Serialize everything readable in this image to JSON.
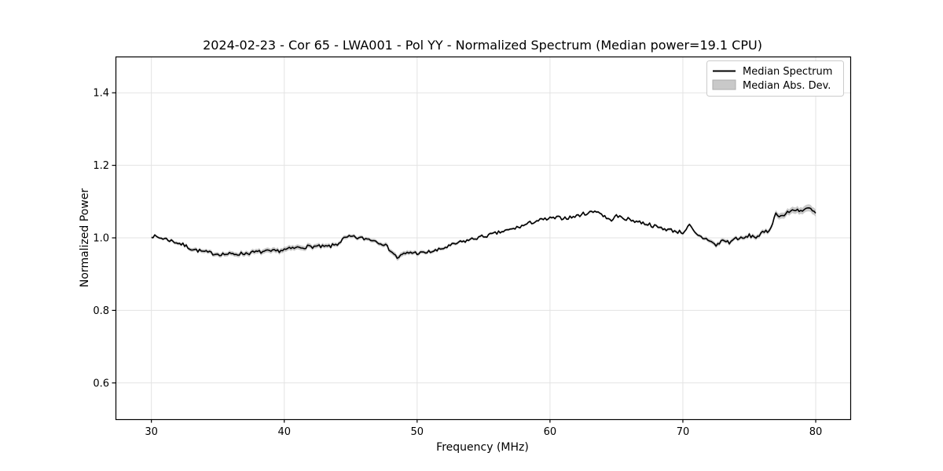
{
  "chart_data": {
    "type": "line",
    "title": "2024-02-23 - Cor 65 - LWA001 - Pol YY - Normalized Spectrum (Median power=19.1 CPU)",
    "xlabel": "Frequency (MHz)",
    "ylabel": "Normalized Power",
    "xlim": [
      27.3,
      82.6
    ],
    "ylim": [
      0.5,
      1.5
    ],
    "xticks": [
      30,
      40,
      50,
      60,
      70,
      80
    ],
    "yticks": [
      0.6,
      0.8,
      1.0,
      1.2,
      1.4
    ],
    "grid": true,
    "legend": {
      "position": "upper right",
      "entries": [
        {
          "label": "Median Spectrum",
          "type": "line",
          "color": "#000000"
        },
        {
          "label": "Median Abs. Dev.",
          "type": "patch",
          "color": "#c9c9c9"
        }
      ]
    },
    "noise_amplitude": 0.005,
    "series": [
      {
        "name": "Median Spectrum",
        "x": [
          30,
          30.5,
          31,
          31.5,
          32,
          32.5,
          33,
          33.5,
          34,
          34.5,
          35,
          35.5,
          36,
          36.5,
          37,
          37.5,
          38,
          38.5,
          39,
          39.5,
          40,
          40.5,
          41,
          41.5,
          42,
          42.5,
          43,
          43.5,
          44,
          44.5,
          45,
          45.5,
          46,
          46.5,
          47,
          47.5,
          48,
          48.5,
          49,
          49.5,
          50,
          50.5,
          51,
          51.5,
          52,
          52.5,
          53,
          53.5,
          54,
          54.5,
          55,
          55.5,
          56,
          56.5,
          57,
          57.5,
          58,
          58.5,
          59,
          59.5,
          60,
          60.5,
          61,
          61.5,
          62,
          62.5,
          63,
          63.5,
          64,
          64.5,
          65,
          65.5,
          66,
          66.5,
          67,
          67.5,
          68,
          68.5,
          69,
          69.5,
          70,
          70.5,
          71,
          71.5,
          72,
          72.5,
          73,
          73.5,
          74,
          74.5,
          75,
          75.5,
          76,
          76.5,
          77,
          77.5,
          78,
          78.5,
          79,
          79.5,
          80
        ],
        "y": [
          1.006,
          1.001,
          0.998,
          0.992,
          0.986,
          0.979,
          0.97,
          0.965,
          0.961,
          0.958,
          0.956,
          0.955,
          0.955,
          0.956,
          0.957,
          0.959,
          0.961,
          0.962,
          0.962,
          0.964,
          0.967,
          0.97,
          0.973,
          0.975,
          0.976,
          0.976,
          0.975,
          0.977,
          0.983,
          0.998,
          1.003,
          1.0,
          0.998,
          0.996,
          0.99,
          0.983,
          0.966,
          0.945,
          0.955,
          0.96,
          0.958,
          0.958,
          0.962,
          0.965,
          0.972,
          0.978,
          0.985,
          0.99,
          0.995,
          1.0,
          1.004,
          1.008,
          1.013,
          1.018,
          1.022,
          1.028,
          1.034,
          1.041,
          1.047,
          1.05,
          1.053,
          1.055,
          1.055,
          1.056,
          1.06,
          1.066,
          1.07,
          1.075,
          1.062,
          1.048,
          1.06,
          1.055,
          1.05,
          1.046,
          1.041,
          1.037,
          1.03,
          1.026,
          1.022,
          1.018,
          1.015,
          1.034,
          1.008,
          1.0,
          0.994,
          0.978,
          0.994,
          0.987,
          1.0,
          0.997,
          1.006,
          1.002,
          1.013,
          1.02,
          1.066,
          1.06,
          1.072,
          1.079,
          1.074,
          1.082,
          1.067
        ]
      },
      {
        "name": "Median Abs. Dev.",
        "halfwidth_points": [
          [
            30,
            0.003
          ],
          [
            33,
            0.005
          ],
          [
            36,
            0.006
          ],
          [
            40,
            0.007
          ],
          [
            43,
            0.006
          ],
          [
            45,
            0.005
          ],
          [
            47,
            0.005
          ],
          [
            48.5,
            0.007
          ],
          [
            50,
            0.005
          ],
          [
            53,
            0.004
          ],
          [
            56,
            0.003
          ],
          [
            60,
            0.003
          ],
          [
            65,
            0.003
          ],
          [
            69,
            0.004
          ],
          [
            71,
            0.004
          ],
          [
            72.5,
            0.006
          ],
          [
            74,
            0.005
          ],
          [
            75.5,
            0.006
          ],
          [
            76.5,
            0.006
          ],
          [
            77,
            0.008
          ],
          [
            78.5,
            0.009
          ],
          [
            80,
            0.01
          ]
        ]
      }
    ],
    "colors": {
      "line": "#000000",
      "band": "#c9c9c9",
      "grid": "#e3e3e3",
      "frame": "#000000",
      "background": "#ffffff",
      "legend_border": "#cccccc"
    }
  }
}
